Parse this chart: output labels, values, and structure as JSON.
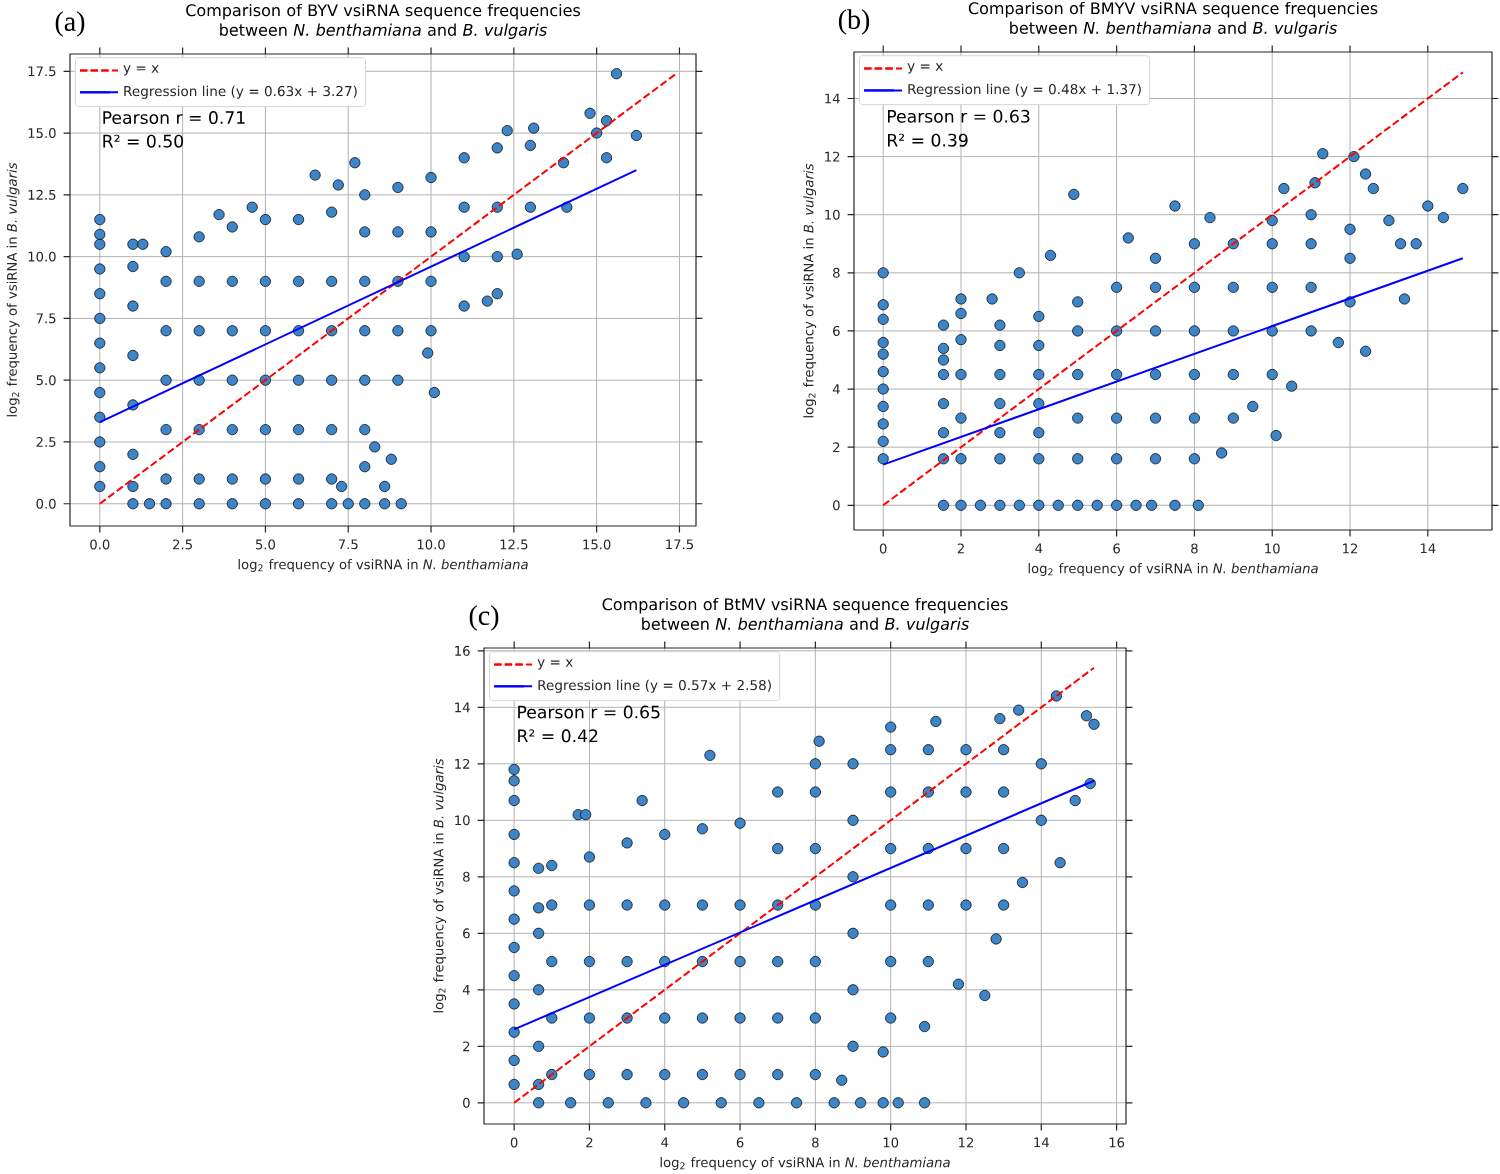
{
  "chart_data": [
    {
      "type": "scatter",
      "title": "Comparison of BYV vsiRNA sequence frequencies between *N. benthamiana* and *B. vulgaris*",
      "xlabel": "log$_{2}$ frequency of vsiRNA in *N. benthamiana*",
      "ylabel": "log$_{2}$ frequency of vsiRNA in *B. vulgaris*",
      "annotations": [
        "(a)",
        "Pearson r = 0.71",
        "R² = 0.50"
      ],
      "series": [
        {
          "color": "#3d85c6",
          "marker": "circle",
          "x": [
            0,
            0,
            0,
            0,
            0,
            0,
            0,
            0,
            0,
            0,
            0,
            0,
            0,
            1,
            1.5,
            2,
            3,
            4,
            5,
            6,
            7,
            7.5,
            8,
            8.6,
            9.1,
            1,
            1,
            1,
            1,
            1,
            1,
            1,
            1.3,
            2,
            2,
            2,
            2,
            2,
            2,
            3,
            3,
            3,
            3,
            3,
            3,
            4,
            4,
            4,
            4,
            4,
            4,
            5,
            5,
            5,
            5,
            5,
            5,
            6,
            6,
            6,
            6,
            6,
            6,
            7,
            7,
            7,
            7,
            7,
            7,
            8,
            8,
            8,
            8,
            8,
            8,
            9,
            9,
            9,
            9,
            9,
            10,
            10,
            10,
            10,
            11,
            11,
            11,
            11,
            12,
            12,
            12,
            13,
            13,
            3.6,
            4.6,
            6.5,
            7.2,
            7.7,
            12.3,
            13.1,
            14.8,
            15.6,
            15.3,
            16.2,
            15.3,
            14.1,
            12.6,
            12,
            11.7,
            10.1,
            9.9,
            8.8,
            8.6,
            8.3,
            14,
            15,
            8,
            7.3
          ],
          "values": [
            0.7,
            1.5,
            2.5,
            3.5,
            4.5,
            5.5,
            6.5,
            7.5,
            8.5,
            9.5,
            10.5,
            10.9,
            11.5,
            0,
            0,
            0,
            0,
            0,
            0,
            0,
            0,
            0,
            0,
            0,
            0,
            0.7,
            2,
            4,
            6,
            8,
            9.6,
            10.5,
            10.5,
            1,
            3,
            5,
            7,
            9,
            10.2,
            1,
            3,
            5,
            7,
            9,
            10.8,
            1,
            3,
            5,
            7,
            9,
            11.2,
            1,
            3,
            5,
            7,
            9,
            11.5,
            1,
            3,
            5,
            7,
            9,
            11.5,
            1,
            3,
            5,
            7,
            9,
            11.8,
            3,
            5,
            7,
            9,
            11,
            12.5,
            5,
            7,
            9,
            11,
            12.8,
            7,
            9,
            11,
            13.2,
            8,
            10,
            12,
            14,
            10,
            12,
            14.4,
            12,
            14.5,
            11.7,
            12,
            13.3,
            12.9,
            13.8,
            15.1,
            15.2,
            15.8,
            17.4,
            15.5,
            14.9,
            14,
            12,
            10.1,
            8.5,
            8.2,
            4.5,
            6.1,
            1.8,
            0.7,
            2.3,
            13.8,
            15,
            1.5,
            0.7
          ]
        },
        {
          "type": "line",
          "name": "y = x",
          "color": "#ff0000",
          "line_style": "dashed",
          "x": [
            0,
            17.4
          ],
          "values": [
            0,
            17.4
          ]
        },
        {
          "type": "line",
          "name": "Regression line (y = 0.63x + 3.27)",
          "color": "#0000ff",
          "line_style": "solid",
          "x": [
            0,
            16.2
          ],
          "values": [
            3.3,
            13.5
          ]
        }
      ],
      "xlim": [
        -0.9,
        18.0
      ],
      "ylim": [
        -0.9,
        18.2
      ],
      "xticks": [
        {
          "value": 0,
          "label": "0.0"
        },
        2.5,
        {
          "value": 5,
          "label": "5.0"
        },
        7.5,
        {
          "value": 10,
          "label": "10.0"
        },
        12.5,
        {
          "value": 15,
          "label": "15.0"
        },
        17.5
      ],
      "yticks": [
        {
          "value": 0,
          "label": "0.0"
        },
        2.5,
        {
          "value": 5,
          "label": "5.0"
        },
        7.5,
        {
          "value": 10,
          "label": "10.0"
        },
        12.5,
        {
          "value": 15,
          "label": "15.0"
        },
        17.5
      ],
      "grid": true,
      "legend": "top left"
    },
    {
      "type": "scatter",
      "title": "Comparison of BMYV vsiRNA sequence frequencies between *N. benthamiana* and *B. vulgaris*",
      "xlabel": "log$_{2}$ frequency of vsiRNA in *N. benthamiana*",
      "ylabel": "log$_{2}$ frequency of vsiRNA in *B. vulgaris*",
      "annotations": [
        "(b)",
        "Pearson r = 0.63",
        "R² = 0.39"
      ],
      "series": [
        {
          "color": "#3d85c6",
          "marker": "circle",
          "x": [
            0,
            0,
            0,
            0,
            0,
            0,
            0,
            0,
            0,
            0,
            0,
            1.55,
            2,
            2.5,
            3,
            3.5,
            4,
            4.5,
            5,
            5.5,
            6,
            6.5,
            6.9,
            7.5,
            8.1,
            1.55,
            1.55,
            1.55,
            1.55,
            1.55,
            1.55,
            1.55,
            2,
            2,
            2,
            2,
            2,
            2,
            2.8,
            3,
            3,
            3,
            3,
            3,
            3,
            4,
            4,
            4,
            4,
            4,
            4,
            5,
            5,
            5,
            5,
            5,
            6,
            6,
            6,
            6,
            6,
            7,
            7,
            7,
            7,
            7,
            7,
            8,
            8,
            8,
            8,
            8,
            8,
            9,
            9,
            9,
            9,
            9,
            10,
            10,
            10,
            10,
            10,
            11,
            11,
            11,
            11,
            12,
            12,
            12,
            3.5,
            4.3,
            4.9,
            6.3,
            7.5,
            8.4,
            10.3,
            11.1,
            11.3,
            12.1,
            12.4,
            12.6,
            14,
            14.4,
            14.9,
            13.3,
            13.4,
            12.4,
            11.7,
            10.5,
            10.1,
            8.7,
            9.5,
            13,
            13.7
          ],
          "values": [
            1.6,
            2.2,
            2.8,
            3.4,
            4,
            4.6,
            5.2,
            5.6,
            6.4,
            6.9,
            8,
            0,
            0,
            0,
            0,
            0,
            0,
            0,
            0,
            0,
            0,
            0,
            0,
            0,
            0,
            1.6,
            2.5,
            3.5,
            4.5,
            5,
            5.4,
            6.2,
            1.6,
            3,
            4.5,
            5.7,
            6.6,
            7.1,
            7.1,
            1.6,
            2.5,
            3.5,
            4.5,
            5.5,
            6.2,
            1.6,
            2.5,
            3.5,
            4.5,
            5.5,
            6.5,
            1.6,
            3,
            4.5,
            6,
            7,
            1.6,
            3,
            4.5,
            6,
            7.5,
            1.6,
            3,
            4.5,
            6,
            7.5,
            8.5,
            1.6,
            3,
            4.5,
            6,
            7.5,
            9,
            3,
            4.5,
            6,
            7.5,
            9,
            4.5,
            6,
            7.5,
            9,
            9.8,
            6,
            7.5,
            9,
            10,
            7,
            8.5,
            9.5,
            8,
            8.6,
            10.7,
            9.2,
            10.3,
            9.9,
            10.9,
            11.1,
            12.1,
            12,
            11.4,
            10.9,
            10.3,
            9.9,
            10.9,
            9,
            7.1,
            5.3,
            5.6,
            4.1,
            2.4,
            1.8,
            3.4,
            9.8,
            9
          ]
        },
        {
          "type": "line",
          "name": "y = x",
          "color": "#ff0000",
          "line_style": "dashed",
          "x": [
            0,
            14.9
          ],
          "values": [
            0,
            14.9
          ]
        },
        {
          "type": "line",
          "name": "Regression line (y = 0.48x + 1.37)",
          "color": "#0000ff",
          "line_style": "solid",
          "x": [
            0,
            14.9
          ],
          "values": [
            1.4,
            8.5
          ]
        }
      ],
      "xlim": [
        -0.75,
        15.65
      ],
      "ylim": [
        -0.85,
        15.6
      ],
      "xticks": [
        0,
        2,
        4,
        6,
        8,
        10,
        12,
        14
      ],
      "yticks": [
        0,
        2,
        4,
        6,
        8,
        10,
        12,
        14
      ],
      "grid": true,
      "legend": "top left"
    },
    {
      "type": "scatter",
      "title": "Comparison of BtMV vsiRNA sequence frequencies between *N. benthamiana* and *B. vulgaris*",
      "xlabel": "log$_{2}$ frequency of vsiRNA in *N. benthamiana*",
      "ylabel": "log$_{2}$ frequency of vsiRNA in *B. vulgaris*",
      "annotations": [
        "(c)",
        "Pearson r = 0.65",
        "R² = 0.42"
      ],
      "series": [
        {
          "color": "#3d85c6",
          "marker": "circle",
          "x": [
            0,
            0,
            0,
            0,
            0,
            0,
            0,
            0,
            0,
            0,
            0,
            0,
            0,
            0.65,
            1.5,
            2.5,
            3.5,
            4.5,
            5.5,
            6.5,
            7.5,
            8.5,
            9.2,
            9.8,
            10.2,
            10.9,
            0.65,
            0.65,
            0.65,
            0.65,
            0.65,
            0.65,
            1,
            1,
            1,
            1,
            1,
            2,
            2,
            2,
            2,
            2,
            3,
            3,
            3,
            3,
            3,
            4,
            4,
            4,
            4,
            4,
            5,
            5,
            5,
            5,
            5,
            6,
            6,
            6,
            6,
            6,
            7,
            7,
            7,
            7,
            7,
            7,
            8,
            8,
            8,
            8,
            8,
            8,
            8,
            9,
            9,
            9,
            9,
            9,
            9,
            10,
            10,
            10,
            10,
            10,
            10,
            11,
            11,
            11,
            11,
            11,
            12,
            12,
            12,
            12,
            13,
            13,
            13,
            14,
            14,
            1.7,
            1.9,
            3.4,
            5.2,
            8.1,
            10,
            11.2,
            12.9,
            13.4,
            14.4,
            15.2,
            15.4,
            15.3,
            14.9,
            14.5,
            13.5,
            12.8,
            12.5,
            11.8,
            10.9,
            8.7,
            9.8,
            13
          ],
          "values": [
            0.65,
            1.5,
            2.5,
            3.5,
            4.5,
            5.5,
            6.5,
            7.5,
            8.5,
            9.5,
            10.7,
            11.4,
            11.8,
            0,
            0,
            0,
            0,
            0,
            0,
            0,
            0,
            0,
            0,
            0,
            0,
            0,
            0.65,
            2,
            4,
            6,
            6.9,
            8.3,
            1,
            3,
            5,
            7,
            8.4,
            1,
            3,
            5,
            7,
            8.7,
            1,
            3,
            5,
            7,
            9.2,
            1,
            3,
            5,
            7,
            9.5,
            1,
            3,
            5,
            7,
            9.7,
            1,
            3,
            5,
            7,
            9.9,
            1,
            3,
            5,
            7,
            9,
            11,
            1,
            3,
            5,
            7,
            9,
            11,
            12,
            2,
            4,
            6,
            8,
            10,
            12,
            3,
            5,
            7,
            9,
            11,
            12.5,
            5,
            7,
            9,
            11,
            12.5,
            7,
            9,
            11,
            12.5,
            9,
            11,
            12.5,
            10,
            12,
            10.2,
            10.2,
            10.7,
            12.3,
            12.8,
            13.3,
            13.5,
            13.6,
            13.9,
            14.4,
            13.7,
            13.4,
            11.3,
            10.7,
            8.5,
            7.8,
            5.8,
            3.8,
            4.2,
            2.7,
            0.8,
            1.8,
            7
          ]
        },
        {
          "type": "line",
          "name": "y = x",
          "color": "#ff0000",
          "line_style": "dashed",
          "x": [
            0,
            15.4
          ],
          "values": [
            0,
            15.4
          ]
        },
        {
          "type": "line",
          "name": "Regression line (y = 0.57x + 2.58)",
          "color": "#0000ff",
          "line_style": "solid",
          "x": [
            0,
            15.4
          ],
          "values": [
            2.6,
            11.4
          ]
        }
      ],
      "xlim": [
        -0.8,
        16.25
      ],
      "ylim": [
        -0.75,
        16.1
      ],
      "xticks": [
        0,
        2,
        4,
        6,
        8,
        10,
        12,
        14,
        16
      ],
      "yticks": [
        0,
        2,
        4,
        6,
        8,
        10,
        12,
        14,
        16
      ],
      "grid": true,
      "legend": "top left"
    }
  ]
}
